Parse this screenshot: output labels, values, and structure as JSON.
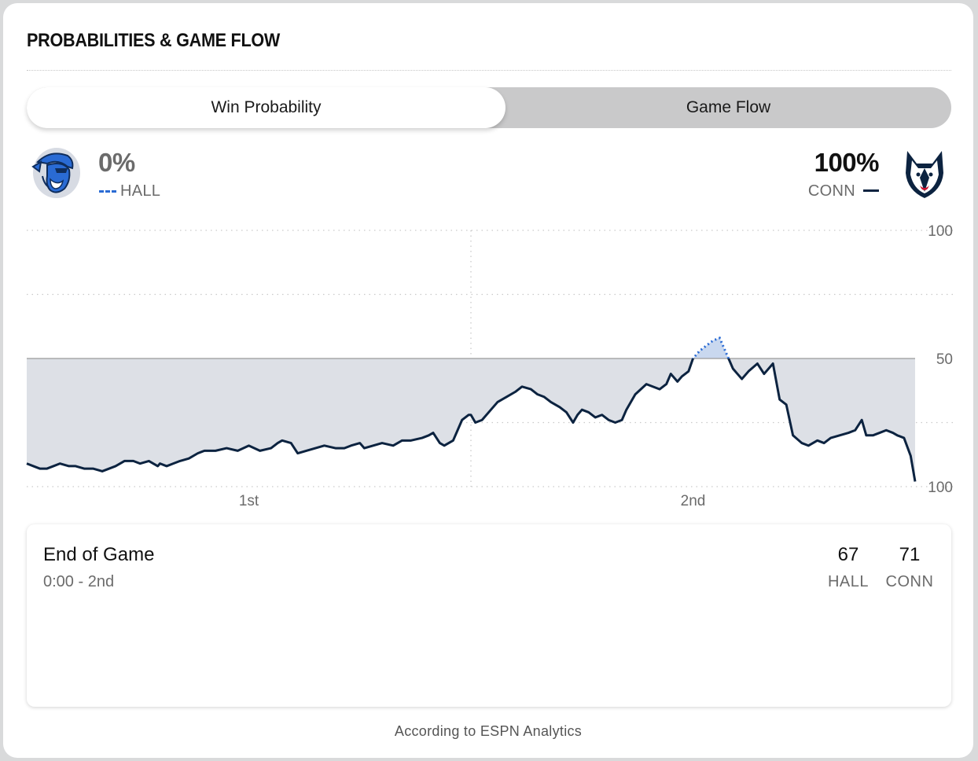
{
  "header": {
    "title": "PROBABILITIES & GAME FLOW"
  },
  "tabs": [
    {
      "label": "Win Probability",
      "selected": true
    },
    {
      "label": "Game Flow",
      "selected": false
    }
  ],
  "away": {
    "abbr": "HALL",
    "pct": "0%",
    "color": "#2a6bd4",
    "line_style": "dashed",
    "logo": "pirate-logo"
  },
  "home": {
    "abbr": "CONN",
    "pct": "100%",
    "color": "#0c2340",
    "line_style": "solid",
    "logo": "husky-logo"
  },
  "chart_data": {
    "type": "line",
    "ylim": [
      0,
      100
    ],
    "y_tick_labels": [
      "100",
      "50",
      "100"
    ],
    "x_tick_labels": [
      "1st",
      "2nd"
    ],
    "x_domain": [
      0,
      40
    ],
    "periods": [
      {
        "label": "1st",
        "start": 0,
        "end": 20
      },
      {
        "label": "2nd",
        "start": 20,
        "end": 40
      }
    ],
    "series": [
      {
        "x": [
          0,
          0.3,
          0.6,
          0.9,
          1.2,
          1.5,
          1.9,
          2.2,
          2.6,
          3,
          3.4,
          3.7,
          4,
          4.4,
          4.8,
          5.1,
          5.5,
          5.9,
          6,
          6.3,
          6.6,
          6.9,
          7.3,
          7.7,
          8,
          8.5,
          9,
          9.5,
          10,
          10.5,
          11,
          11.3,
          11.5,
          11.9,
          12.2,
          12.6,
          13,
          13.4,
          13.9,
          14.3,
          14.6,
          15,
          15.2,
          15.6,
          16,
          16.5,
          16.9,
          17.3,
          17.8,
          18.1,
          18.3,
          18.6,
          18.8,
          19.2,
          19.6,
          19.9,
          20,
          20.2,
          20.5,
          20.9,
          21.2,
          21.6,
          22,
          22.3,
          22.7,
          23,
          23.3,
          23.6,
          24,
          24.3,
          24.6,
          24.8,
          25,
          25.3,
          25.6,
          25.9,
          26.2,
          26.5,
          26.8,
          27,
          27.4,
          27.9,
          28.2,
          28.5,
          28.8,
          29,
          29.3,
          29.5,
          29.8,
          30,
          30.3,
          30.6,
          30.9,
          31.2,
          31.5,
          31.8,
          32,
          32.2,
          32.5,
          32.9,
          33.2,
          33.6,
          33.9,
          34.2,
          34.5,
          34.9,
          35.2,
          35.6,
          35.9,
          36.2,
          36.6,
          37,
          37.3,
          37.6,
          37.8,
          38.1,
          38.4,
          38.7,
          39.0,
          39.2,
          39.5,
          39.8,
          40
        ],
        "y": [
          9,
          8,
          7,
          7,
          8,
          9,
          8,
          8,
          7,
          7,
          6,
          7,
          8,
          10,
          10,
          9,
          10,
          8,
          9,
          8,
          9,
          10,
          11,
          13,
          14,
          14,
          15,
          14,
          16,
          14,
          15,
          17,
          18,
          17,
          13,
          14,
          15,
          16,
          15,
          15,
          16,
          17,
          15,
          16,
          17,
          16,
          18,
          18,
          19,
          20,
          21,
          17,
          16,
          18,
          26,
          28,
          28,
          25,
          26,
          30,
          33,
          35,
          37,
          39,
          38,
          36,
          35,
          33,
          31,
          29,
          25,
          28,
          30,
          29,
          27,
          28,
          26,
          25,
          26,
          30,
          36,
          40,
          39,
          38,
          40,
          44,
          41,
          43,
          45,
          50,
          53,
          55,
          57,
          58,
          52,
          46,
          44,
          42,
          45,
          48,
          44,
          48,
          34,
          32,
          20,
          17,
          16,
          18,
          17,
          19,
          20,
          21,
          22,
          26,
          20,
          20,
          21,
          22,
          21,
          20,
          19,
          12,
          2
        ]
      }
    ],
    "values_description": "CONN win probability line; above 50 shaded toward HALL side (dotted), below 50 solid"
  },
  "summary": {
    "title": "End of Game",
    "time": "0:00 - 2nd",
    "away_score": "67",
    "home_score": "71",
    "away_abbr": "HALL",
    "home_abbr": "CONN"
  },
  "footnote": "According to ESPN Analytics"
}
